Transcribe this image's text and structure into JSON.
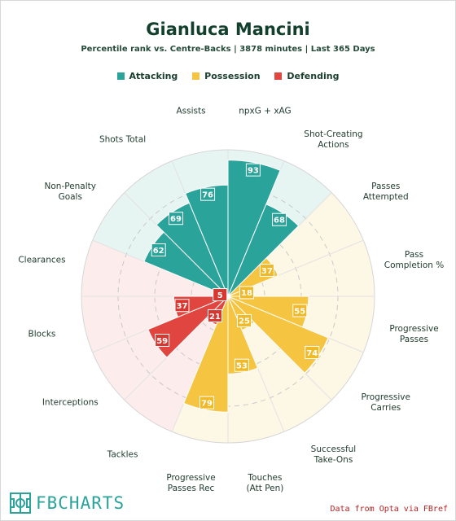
{
  "header": {
    "title": "Gianluca Mancini",
    "subtitle": "Percentile rank vs. Centre-Backs | 3878 minutes | Last 365 Days"
  },
  "legend": [
    {
      "label": "Attacking",
      "color": "#2aa39b"
    },
    {
      "label": "Possession",
      "color": "#f5c542"
    },
    {
      "label": "Defending",
      "color": "#e0463f"
    }
  ],
  "chart_data": {
    "type": "radar-bar",
    "range": [
      0,
      100
    ],
    "categories": [
      "npxG + xAG",
      "Shot-Creating Actions",
      "Passes Attempted",
      "Pass Completion %",
      "Progressive Passes",
      "Progressive Carries",
      "Successful Take-Ons",
      "Touches (Att Pen)",
      "Progressive Passes Rec",
      "Tackles",
      "Interceptions",
      "Blocks",
      "Clearances",
      "Non-Penalty Goals",
      "Shots Total",
      "Assists"
    ],
    "groups": [
      "Attacking",
      "Attacking",
      "Possession",
      "Possession",
      "Possession",
      "Possession",
      "Possession",
      "Possession",
      "Possession",
      "Defending",
      "Defending",
      "Defending",
      "Defending",
      "Attacking",
      "Attacking",
      "Attacking"
    ],
    "values": [
      93,
      68,
      37,
      18,
      55,
      74,
      25,
      53,
      79,
      21,
      59,
      37,
      5,
      62,
      69,
      76
    ],
    "colors": {
      "Attacking": {
        "bar": "#2aa39b",
        "bg": "#e6f5f2",
        "label": "#2aa39b"
      },
      "Possession": {
        "bar": "#f5c542",
        "bg": "#fdf7e6",
        "label": "#f0b928"
      },
      "Defending": {
        "bar": "#e0463f",
        "bg": "#fdecec",
        "label": "#d8362f"
      }
    }
  },
  "footer": {
    "brand": "FBCHARTS",
    "credit": "Data from Opta via FBref"
  }
}
